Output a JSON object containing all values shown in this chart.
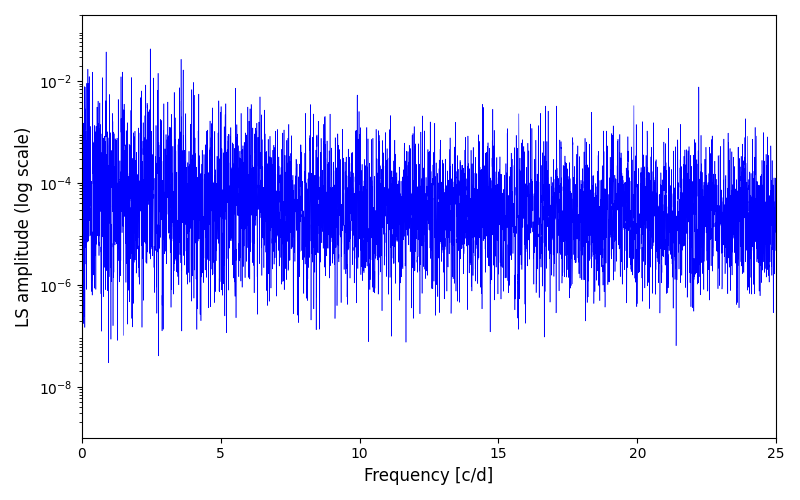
{
  "xlabel": "Frequency [c/d]",
  "ylabel": "LS amplitude (log scale)",
  "line_color": "#0000ff",
  "line_width": 0.4,
  "xlim": [
    0,
    25
  ],
  "ylim": [
    1e-09,
    0.2
  ],
  "yscale": "log",
  "num_points": 10000,
  "seed": 7,
  "figsize": [
    8.0,
    5.0
  ],
  "dpi": 100,
  "yticks": [
    1e-08,
    1e-06,
    0.0001,
    0.01
  ],
  "xticks": [
    0,
    5,
    10,
    15,
    20,
    25
  ]
}
